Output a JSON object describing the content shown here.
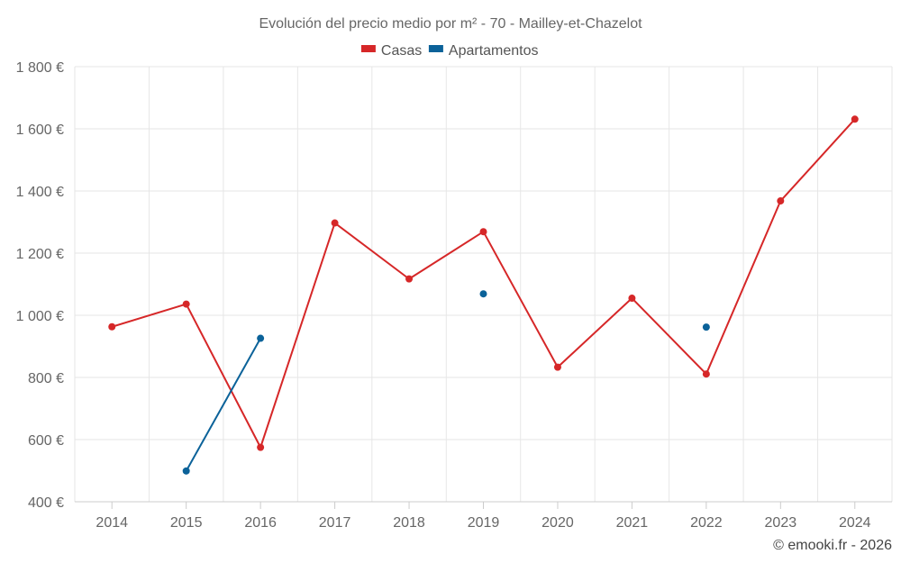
{
  "chart_data": {
    "type": "line",
    "title": "Evolución del precio medio por m² - 70 - Mailley-et-Chazelot",
    "categories": [
      "2014",
      "2015",
      "2016",
      "2017",
      "2018",
      "2019",
      "2020",
      "2021",
      "2022",
      "2023",
      "2024"
    ],
    "ylim": [
      400,
      1800
    ],
    "yticks": [
      400,
      600,
      800,
      1000,
      1200,
      1400,
      1600,
      1800
    ],
    "ytick_labels": [
      "400 €",
      "600 €",
      "800 €",
      "1 000 €",
      "1 200 €",
      "1 400 €",
      "1 600 €",
      "1 800 €"
    ],
    "grid": true,
    "legend_position": "top-center",
    "series": [
      {
        "name": "Casas",
        "color": "#d62728",
        "values": [
          963,
          1036,
          575,
          1297,
          1117,
          1269,
          833,
          1055,
          811,
          1368,
          1631
        ]
      },
      {
        "name": "Apartamentos",
        "color": "#0b6299",
        "values": [
          null,
          499,
          926,
          null,
          null,
          1069,
          null,
          null,
          962,
          null,
          null
        ]
      }
    ],
    "credit": "© emooki.fr - 2026"
  }
}
